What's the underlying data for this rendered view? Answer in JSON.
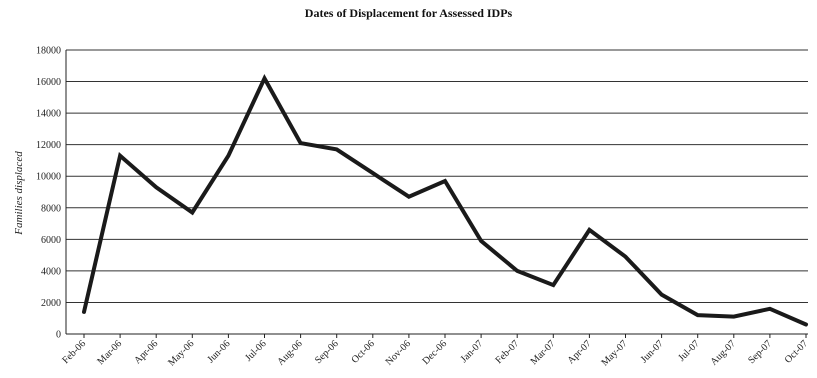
{
  "chart_data": {
    "type": "line",
    "title": "Dates of Displacement for Assessed IDPs",
    "xlabel": "",
    "ylabel": "Families displaced",
    "ylim": [
      0,
      18000
    ],
    "y_ticks": [
      0,
      2000,
      4000,
      6000,
      8000,
      10000,
      12000,
      14000,
      16000,
      18000
    ],
    "grid": true,
    "legend": "none",
    "line_color": "#1a1a1a",
    "categories": [
      "Feb-06",
      "Mar-06",
      "Apr-06",
      "May-06",
      "Jun-06",
      "Jul-06",
      "Aug-06",
      "Sep-06",
      "Oct-06",
      "Nov-06",
      "Dec-06",
      "Jan-07",
      "Feb-07",
      "Mar-07",
      "Apr-07",
      "May-07",
      "Jun-07",
      "Jul-07",
      "Aug-07",
      "Sep-07",
      "Oct-07"
    ],
    "series": [
      {
        "values": [
          1400,
          11300,
          9300,
          7700,
          11300,
          16200,
          12100,
          11700,
          10200,
          8700,
          9700,
          5900,
          4000,
          3100,
          6600,
          4900,
          2500,
          1200,
          1100,
          1600,
          600
        ]
      }
    ]
  }
}
